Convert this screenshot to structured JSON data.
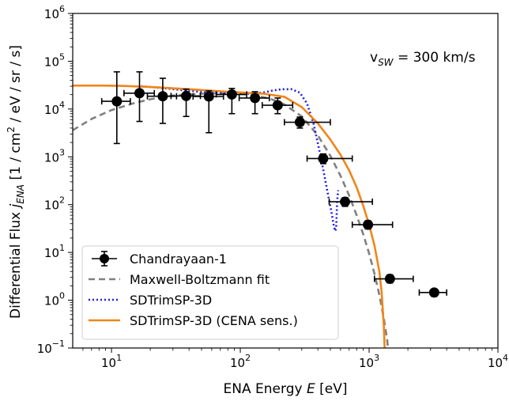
{
  "chart_data": {
    "type": "scatter",
    "xlabel": {
      "prefix": "ENA Energy ",
      "var": "E",
      "suffix": " [eV]"
    },
    "ylabel": {
      "prefix": "Differential Flux ",
      "var": "j",
      "sub": "ENA",
      "mid": " [1 / cm",
      "sup": "2",
      "suffix": " / eV / sr / s]"
    },
    "xscale": "log",
    "yscale": "log",
    "xlim": [
      5,
      10000
    ],
    "ylim": [
      0.1,
      1000000
    ],
    "xticks": [
      {
        "value": 10,
        "base": "10",
        "exp": "1"
      },
      {
        "value": 100,
        "base": "10",
        "exp": "2"
      },
      {
        "value": 1000,
        "base": "10",
        "exp": "3"
      },
      {
        "value": 10000,
        "base": "10",
        "exp": "4"
      }
    ],
    "yticks": [
      {
        "value": 0.1,
        "base": "10",
        "exp": "−1"
      },
      {
        "value": 1,
        "base": "10",
        "exp": "0"
      },
      {
        "value": 10,
        "base": "10",
        "exp": "1"
      },
      {
        "value": 100,
        "base": "10",
        "exp": "2"
      },
      {
        "value": 1000,
        "base": "10",
        "exp": "3"
      },
      {
        "value": 10000,
        "base": "10",
        "exp": "4"
      },
      {
        "value": 100000,
        "base": "10",
        "exp": "5"
      },
      {
        "value": 1000000,
        "base": "10",
        "exp": "6"
      }
    ],
    "annotation": {
      "prefix": "v",
      "sub": "SW",
      "suffix": " = 300 km/s"
    },
    "legend_placement": "lower-left",
    "series": [
      {
        "name": "Chandrayaan-1",
        "style": "errorbar",
        "color": "#000000",
        "points": [
          {
            "x": 11,
            "y": 14500,
            "xerr": [
              8.4,
              14.0
            ],
            "yerr": [
              1900,
              60000
            ]
          },
          {
            "x": 16.5,
            "y": 21500,
            "xerr": [
              12.5,
              21.5
            ],
            "yerr": [
              5500,
              60000
            ]
          },
          {
            "x": 25,
            "y": 18500,
            "xerr": [
              19.0,
              32.0
            ],
            "yerr": [
              5000,
              44000
            ]
          },
          {
            "x": 38,
            "y": 18800,
            "xerr": [
              29.0,
              49.0
            ],
            "yerr": [
              7000,
              26000
            ]
          },
          {
            "x": 57,
            "y": 18300,
            "xerr": [
              43.0,
              74.0
            ],
            "yerr": [
              3200,
              24000
            ]
          },
          {
            "x": 86,
            "y": 20200,
            "xerr": [
              65.0,
              112.0
            ],
            "yerr": [
              8000,
              27000
            ]
          },
          {
            "x": 130,
            "y": 17000,
            "xerr": [
              98.0,
              168.0
            ],
            "yerr": [
              8000,
              23000
            ]
          },
          {
            "x": 195,
            "y": 12000,
            "xerr": [
              148.0,
              255.0
            ],
            "yerr": [
              8000,
              17000
            ]
          },
          {
            "x": 290,
            "y": 5300,
            "xerr": [
              220.0,
              500.0
            ],
            "yerr": [
              4000,
              6800
            ]
          },
          {
            "x": 440,
            "y": 920,
            "xerr": [
              330.0,
              740.0
            ],
            "yerr": [
              720,
              1150
            ]
          },
          {
            "x": 650,
            "y": 115,
            "xerr": [
              490.0,
              1060.0
            ],
            "yerr": [
              92,
              140
            ]
          },
          {
            "x": 980,
            "y": 38,
            "xerr": [
              740.0,
              1520.0
            ],
            "yerr": [
              31,
              46
            ]
          },
          {
            "x": 1450,
            "y": 2.8,
            "xerr": [
              1100.0,
              2200.0
            ],
            "yerr": [
              2.3,
              3.4
            ]
          },
          {
            "x": 3200,
            "y": 1.45,
            "xerr": [
              2450.0,
              4000.0
            ],
            "yerr": [
              1.2,
              1.7
            ]
          }
        ]
      },
      {
        "name": "Maxwell-Boltzmann fit",
        "style": "dashed",
        "color": "#808080",
        "points": [
          [
            5,
            3600
          ],
          [
            7,
            6200
          ],
          [
            10,
            9500
          ],
          [
            15,
            13300
          ],
          [
            20,
            16000
          ],
          [
            30,
            19200
          ],
          [
            50,
            21000
          ],
          [
            80,
            21500
          ],
          [
            120,
            20000
          ],
          [
            170,
            16500
          ],
          [
            220,
            12500
          ],
          [
            300,
            7000
          ],
          [
            400,
            2800
          ],
          [
            500,
            1050
          ],
          [
            600,
            400
          ],
          [
            700,
            155
          ],
          [
            800,
            60
          ],
          [
            900,
            24
          ],
          [
            1000,
            9.5
          ],
          [
            1100,
            3.6
          ],
          [
            1200,
            1.3
          ],
          [
            1300,
            0.42
          ],
          [
            1380,
            0.15
          ],
          [
            1400,
            0.1
          ]
        ]
      },
      {
        "name": "SDTrimSP-3D",
        "style": "dotted",
        "color": "#1f1fe0",
        "points": [
          [
            17,
            30000
          ],
          [
            25,
            27500
          ],
          [
            40,
            24000
          ],
          [
            60,
            22000
          ],
          [
            90,
            21000
          ],
          [
            120,
            21000
          ],
          [
            150,
            22000
          ],
          [
            180,
            24500
          ],
          [
            210,
            26000
          ],
          [
            250,
            26000
          ],
          [
            290,
            22000
          ],
          [
            330,
            13000
          ],
          [
            370,
            5000
          ],
          [
            410,
            1400
          ],
          [
            450,
            400
          ],
          [
            480,
            160
          ],
          [
            510,
            70
          ],
          [
            530,
            38
          ],
          [
            545,
            28
          ],
          [
            555,
            32
          ],
          [
            565,
            120
          ],
          [
            575,
            200
          ]
        ]
      },
      {
        "name": "SDTrimSP-3D (CENA sens.)",
        "style": "solid",
        "color": "#f08519",
        "points": [
          [
            5,
            31000
          ],
          [
            8,
            31000
          ],
          [
            12,
            30500
          ],
          [
            20,
            29000
          ],
          [
            40,
            26000
          ],
          [
            80,
            23000
          ],
          [
            150,
            21000
          ],
          [
            220,
            18000
          ],
          [
            300,
            11000
          ],
          [
            400,
            5000
          ],
          [
            500,
            2300
          ],
          [
            600,
            1100
          ],
          [
            700,
            520
          ],
          [
            800,
            230
          ],
          [
            900,
            95
          ],
          [
            1000,
            38
          ],
          [
            1100,
            14
          ],
          [
            1200,
            4
          ],
          [
            1250,
            1.5
          ],
          [
            1300,
            0.3
          ],
          [
            1320,
            0.1
          ]
        ]
      }
    ]
  }
}
